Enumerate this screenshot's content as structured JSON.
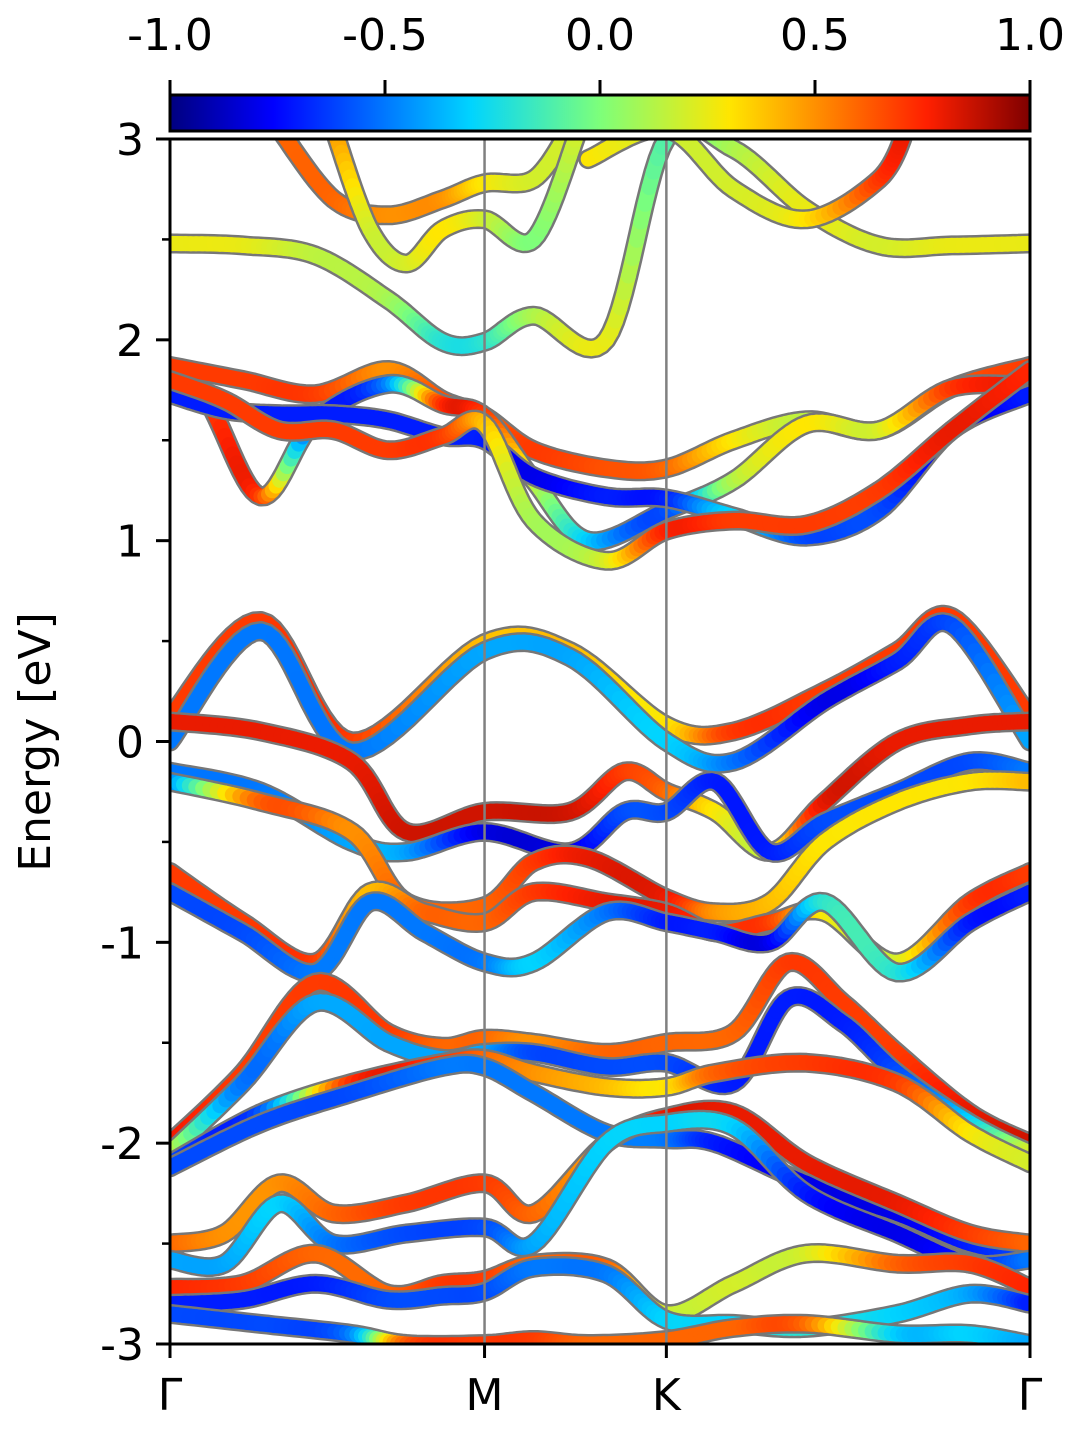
{
  "chart_data": {
    "type": "line",
    "title": "",
    "xlabel": "",
    "ylabel": "Energy [eV]",
    "ylim": [
      -3,
      3
    ],
    "yticks": [
      "-3",
      "-2",
      "-1",
      "0",
      "1",
      "2",
      "3"
    ],
    "xlim": [
      0,
      4.73
    ],
    "kpoints": [
      {
        "label": "Γ",
        "x": 0
      },
      {
        "label": "M",
        "x": 1.73
      },
      {
        "label": "K",
        "x": 2.73
      },
      {
        "label": "Γ",
        "x": 4.73
      }
    ],
    "colorbar": {
      "colormap": "jet",
      "range": [
        -1.0,
        1.0
      ],
      "ticks": [
        "-1.0",
        "-0.5",
        "0.0",
        "0.5",
        "1.0"
      ],
      "placement": "top"
    },
    "grid": false,
    "series": [
      {
        "x": [
          0,
          0.4,
          0.8,
          1.2,
          1.5,
          1.73,
          2.0,
          2.4,
          2.73,
          3.1,
          3.5,
          3.9,
          4.3,
          4.73
        ],
        "y": [
          2.48,
          2.47,
          2.42,
          2.2,
          1.99,
          1.99,
          2.12,
          2.0,
          3.0,
          2.95,
          2.65,
          2.47,
          2.47,
          2.48
        ],
        "c": [
          0.25,
          0.25,
          0.15,
          0.1,
          -0.2,
          -0.2,
          0.1,
          0.25,
          -0.1,
          0.1,
          0.25,
          0.2,
          0.25,
          0.25
        ]
      },
      {
        "x": [
          0,
          0.4,
          0.8,
          1.2,
          1.5,
          1.73,
          2.0,
          2.4,
          2.73,
          3.1,
          3.5,
          3.9,
          4.3,
          4.73
        ],
        "y": [
          1.87,
          1.8,
          1.73,
          1.85,
          1.7,
          1.62,
          1.45,
          1.36,
          1.36,
          1.5,
          1.6,
          1.55,
          1.76,
          1.87
        ],
        "c": [
          0.7,
          0.7,
          0.7,
          0.5,
          0.65,
          0.6,
          0.7,
          0.65,
          0.6,
          0.3,
          0.15,
          0.2,
          0.6,
          0.7
        ]
      },
      {
        "x": [
          0,
          0.2,
          0.5,
          0.8,
          1.2,
          1.5,
          1.73,
          2.0,
          2.3,
          2.73,
          3.1,
          3.5,
          3.9,
          4.3,
          4.73
        ],
        "y": [
          1.77,
          1.7,
          1.22,
          1.6,
          1.78,
          1.68,
          1.62,
          1.3,
          1.0,
          1.15,
          1.3,
          1.58,
          1.55,
          1.76,
          1.77
        ],
        "c": [
          0.8,
          0.7,
          0.7,
          -0.6,
          -0.5,
          0.7,
          0.7,
          0.2,
          -0.3,
          -0.6,
          0.1,
          0.3,
          0.2,
          0.7,
          0.8
        ]
      },
      {
        "x": [
          0,
          0.3,
          0.6,
          0.9,
          1.2,
          1.5,
          1.73,
          2.0,
          2.4,
          2.73,
          3.1,
          3.5,
          3.9,
          4.3,
          4.73
        ],
        "y": [
          1.73,
          1.65,
          1.63,
          1.63,
          1.6,
          1.52,
          1.5,
          1.32,
          1.22,
          1.21,
          1.12,
          1.02,
          1.15,
          1.55,
          1.73
        ],
        "c": [
          -0.7,
          -0.7,
          -0.7,
          -0.7,
          -0.7,
          -0.7,
          -0.7,
          -0.8,
          -0.7,
          -0.7,
          -0.3,
          -0.6,
          -0.6,
          -0.8,
          -0.7
        ]
      },
      {
        "x": [
          0,
          0.3,
          0.6,
          0.9,
          1.2,
          1.5,
          1.73,
          2.0,
          2.4,
          2.73,
          3.1,
          3.5,
          3.9,
          4.3,
          4.73
        ],
        "y": [
          1.8,
          1.7,
          1.55,
          1.55,
          1.45,
          1.52,
          1.58,
          1.1,
          0.9,
          1.05,
          1.1,
          1.08,
          1.25,
          1.55,
          1.85
        ],
        "c": [
          0.7,
          0.7,
          0.7,
          0.7,
          0.7,
          0.7,
          0.4,
          0.1,
          0.2,
          0.75,
          0.7,
          0.7,
          0.7,
          0.8,
          0.75
        ]
      },
      {
        "x": [
          0,
          0.5,
          1.0,
          1.73,
          2.2,
          2.73,
          3.1,
          3.6,
          4.0,
          4.3,
          4.73
        ],
        "y": [
          0.12,
          0.6,
          0.0,
          0.49,
          0.45,
          0.08,
          0.05,
          0.25,
          0.45,
          0.62,
          0.12
        ],
        "c": [
          0.7,
          0.7,
          0.7,
          0.4,
          0.4,
          0.3,
          0.7,
          0.7,
          0.7,
          0.7,
          0.7
        ]
      },
      {
        "x": [
          0,
          0.5,
          1.0,
          1.73,
          2.2,
          2.73,
          3.1,
          3.6,
          4.0,
          4.3,
          4.73
        ],
        "y": [
          0.0,
          0.55,
          -0.05,
          0.45,
          0.42,
          0.0,
          -0.1,
          0.2,
          0.4,
          0.58,
          0.0
        ],
        "c": [
          -0.5,
          -0.5,
          -0.5,
          -0.4,
          -0.4,
          -0.3,
          -0.5,
          -0.8,
          -0.7,
          -0.6,
          -0.4
        ]
      },
      {
        "x": [
          0,
          0.5,
          1.0,
          1.3,
          1.73,
          2.2,
          2.5,
          2.73,
          3.0,
          3.3,
          3.6,
          4.0,
          4.4,
          4.73
        ],
        "y": [
          0.1,
          0.05,
          -0.1,
          -0.45,
          -0.35,
          -0.35,
          -0.15,
          -0.25,
          -0.35,
          -0.55,
          -0.3,
          0.0,
          0.08,
          0.1
        ],
        "c": [
          0.8,
          0.8,
          0.8,
          0.85,
          0.85,
          0.85,
          0.7,
          0.6,
          0.3,
          0.2,
          0.8,
          0.8,
          0.8,
          0.8
        ]
      },
      {
        "x": [
          0,
          0.5,
          1.0,
          1.3,
          1.73,
          2.2,
          2.5,
          2.73,
          3.0,
          3.3,
          3.6,
          4.0,
          4.4,
          4.73
        ],
        "y": [
          -0.15,
          -0.25,
          -0.5,
          -0.55,
          -0.45,
          -0.55,
          -0.35,
          -0.35,
          -0.2,
          -0.55,
          -0.4,
          -0.25,
          -0.1,
          -0.15
        ],
        "c": [
          -0.5,
          -0.5,
          -0.4,
          -0.4,
          -0.8,
          -0.8,
          -0.6,
          -0.6,
          -0.7,
          -0.7,
          -0.6,
          -0.6,
          -0.6,
          -0.5
        ]
      },
      {
        "x": [
          0,
          0.5,
          1.0,
          1.3,
          1.73,
          2.0,
          2.3,
          2.73,
          3.0,
          3.3,
          3.6,
          4.0,
          4.4,
          4.73
        ],
        "y": [
          -0.2,
          -0.3,
          -0.45,
          -0.8,
          -0.82,
          -0.6,
          -0.58,
          -0.78,
          -0.85,
          -0.8,
          -0.5,
          -0.3,
          -0.2,
          -0.2
        ],
        "c": [
          -0.5,
          0.6,
          0.5,
          0.6,
          0.6,
          0.7,
          0.8,
          0.8,
          0.5,
          0.4,
          0.3,
          0.3,
          0.3,
          0.4
        ]
      },
      {
        "x": [
          0,
          0.4,
          0.8,
          1.1,
          1.4,
          1.73,
          2.0,
          2.4,
          2.73,
          3.0,
          3.3,
          3.6,
          4.0,
          4.4,
          4.73
        ],
        "y": [
          -0.65,
          -0.9,
          -1.1,
          -0.75,
          -0.85,
          -0.9,
          -0.75,
          -0.8,
          -0.85,
          -0.95,
          -0.9,
          -0.85,
          -1.1,
          -0.8,
          -0.65
        ],
        "c": [
          0.7,
          0.7,
          0.7,
          0.4,
          0.6,
          0.6,
          0.7,
          0.8,
          0.8,
          0.7,
          0.7,
          0.3,
          0.2,
          0.7,
          0.7
        ]
      },
      {
        "x": [
          0,
          0.4,
          0.8,
          1.1,
          1.4,
          1.73,
          2.0,
          2.4,
          2.73,
          3.0,
          3.3,
          3.6,
          4.0,
          4.4,
          4.73
        ],
        "y": [
          -0.75,
          -0.95,
          -1.15,
          -0.8,
          -0.95,
          -1.1,
          -1.1,
          -0.85,
          -0.9,
          -0.95,
          -1.0,
          -0.8,
          -1.15,
          -0.9,
          -0.75
        ],
        "c": [
          -0.6,
          -0.6,
          -0.5,
          -0.5,
          -0.5,
          -0.5,
          -0.3,
          -0.5,
          -0.7,
          -0.7,
          -0.8,
          -0.2,
          -0.2,
          -0.7,
          -0.7
        ]
      },
      {
        "x": [
          0,
          0.4,
          0.8,
          1.2,
          1.5,
          1.73,
          2.0,
          2.4,
          2.73,
          3.1,
          3.4,
          3.7,
          4.0,
          4.4,
          4.73
        ],
        "y": [
          -2.0,
          -1.65,
          -1.2,
          -1.45,
          -1.52,
          -1.48,
          -1.5,
          -1.55,
          -1.5,
          -1.45,
          -1.1,
          -1.3,
          -1.55,
          -1.85,
          -2.0
        ],
        "c": [
          0.8,
          0.7,
          0.7,
          0.7,
          0.6,
          0.6,
          0.5,
          0.6,
          0.6,
          0.6,
          0.7,
          0.7,
          0.7,
          0.8,
          0.85
        ]
      },
      {
        "x": [
          0,
          0.4,
          0.8,
          1.2,
          1.5,
          1.73,
          2.0,
          2.4,
          2.73,
          3.1,
          3.4,
          3.7,
          4.0,
          4.4,
          4.73
        ],
        "y": [
          -2.05,
          -1.7,
          -1.3,
          -1.5,
          -1.58,
          -1.55,
          -1.55,
          -1.62,
          -1.6,
          -1.7,
          -1.28,
          -1.4,
          -1.65,
          -1.9,
          -2.05
        ],
        "c": [
          0.2,
          -0.5,
          -0.4,
          -0.4,
          -0.4,
          -0.4,
          -0.6,
          -0.6,
          -0.6,
          -0.7,
          -0.7,
          -0.7,
          -0.6,
          -0.3,
          0.2
        ]
      },
      {
        "x": [
          0,
          0.5,
          1.0,
          1.5,
          1.73,
          2.0,
          2.4,
          2.73,
          3.0,
          3.5,
          4.0,
          4.4,
          4.73
        ],
        "y": [
          -2.1,
          -1.85,
          -1.7,
          -1.6,
          -1.58,
          -1.65,
          -1.72,
          -1.72,
          -1.65,
          -1.6,
          -1.7,
          -1.95,
          -2.1
        ],
        "c": [
          -0.6,
          -0.6,
          0.7,
          0.7,
          0.6,
          0.5,
          0.4,
          0.3,
          0.6,
          0.7,
          0.7,
          0.3,
          0.2
        ]
      },
      {
        "x": [
          0,
          0.5,
          1.0,
          1.5,
          1.73,
          2.0,
          2.4,
          2.73,
          3.0,
          3.5,
          4.0,
          4.4,
          4.73
        ],
        "y": [
          -2.12,
          -1.9,
          -1.75,
          -1.62,
          -1.62,
          -1.75,
          -1.95,
          -1.98,
          -2.0,
          -2.2,
          -2.35,
          -2.5,
          -2.55
        ],
        "c": [
          -0.6,
          -0.6,
          -0.6,
          -0.5,
          -0.5,
          -0.5,
          -0.5,
          -0.5,
          -0.7,
          -0.8,
          -0.8,
          -0.7,
          -0.6
        ]
      },
      {
        "x": [
          0,
          0.3,
          0.6,
          0.9,
          1.3,
          1.73,
          2.0,
          2.4,
          2.73,
          3.1,
          3.5,
          4.0,
          4.4,
          4.73
        ],
        "y": [
          -2.5,
          -2.45,
          -2.2,
          -2.35,
          -2.3,
          -2.2,
          -2.35,
          -2.0,
          -1.87,
          -1.85,
          -2.1,
          -2.3,
          -2.45,
          -2.5
        ],
        "c": [
          0.6,
          0.5,
          0.5,
          0.6,
          0.7,
          0.7,
          0.6,
          0.5,
          0.8,
          0.8,
          0.8,
          0.8,
          0.7,
          0.6
        ]
      },
      {
        "x": [
          0,
          0.3,
          0.6,
          0.9,
          1.3,
          1.73,
          2.0,
          2.4,
          2.73,
          3.1,
          3.5,
          4.0,
          4.4,
          4.73
        ],
        "y": [
          -2.58,
          -2.6,
          -2.3,
          -2.5,
          -2.45,
          -2.42,
          -2.5,
          -2.0,
          -1.9,
          -1.92,
          -2.25,
          -2.45,
          -2.6,
          -2.58
        ],
        "c": [
          -0.4,
          -0.4,
          -0.3,
          -0.5,
          -0.6,
          -0.6,
          -0.4,
          -0.3,
          -0.3,
          -0.3,
          -0.7,
          -0.8,
          -0.7,
          -0.5
        ]
      },
      {
        "x": [
          0,
          0.4,
          0.8,
          1.2,
          1.5,
          1.73,
          2.0,
          2.4,
          2.73,
          3.1,
          3.5,
          4.0,
          4.4,
          4.73
        ],
        "y": [
          -2.72,
          -2.7,
          -2.55,
          -2.75,
          -2.7,
          -2.68,
          -2.6,
          -2.62,
          -2.85,
          -2.7,
          -2.55,
          -2.6,
          -2.6,
          -2.72
        ],
        "c": [
          0.75,
          0.7,
          0.6,
          0.6,
          0.7,
          0.7,
          0.6,
          0.6,
          0.2,
          0.2,
          0.2,
          0.6,
          0.7,
          0.75
        ]
      },
      {
        "x": [
          0,
          0.4,
          0.8,
          1.2,
          1.5,
          1.73,
          2.0,
          2.4,
          2.73,
          3.1,
          3.5,
          4.0,
          4.4,
          4.73
        ],
        "y": [
          -2.8,
          -2.78,
          -2.7,
          -2.78,
          -2.76,
          -2.74,
          -2.62,
          -2.65,
          -2.88,
          -2.9,
          -2.92,
          -2.85,
          -2.75,
          -2.8
        ],
        "c": [
          -0.7,
          -0.7,
          -0.7,
          -0.6,
          -0.6,
          -0.6,
          -0.5,
          -0.5,
          -0.3,
          -0.3,
          -0.2,
          -0.3,
          -0.4,
          -0.7
        ]
      },
      {
        "x": [
          0,
          0.5,
          1.0,
          1.3,
          1.73,
          2.0,
          2.3,
          2.73,
          3.1,
          3.5,
          4.0,
          4.4,
          4.73
        ],
        "y": [
          -2.85,
          -2.9,
          -2.95,
          -3.0,
          -3.0,
          -2.98,
          -3.0,
          -2.98,
          -2.92,
          -2.9,
          -2.95,
          -2.95,
          -3.0
        ],
        "c": [
          -0.6,
          -0.6,
          -0.5,
          0.6,
          0.7,
          0.7,
          0.6,
          0.6,
          0.6,
          0.6,
          -0.3,
          -0.3,
          -0.4
        ]
      },
      {
        "x": [
          0.6,
          0.9,
          1.2,
          1.5,
          1.73,
          2.0,
          2.2
        ],
        "y": [
          3.05,
          2.7,
          2.62,
          2.7,
          2.78,
          2.8,
          3.05
        ],
        "c": [
          0.6,
          0.6,
          0.5,
          0.5,
          0.3,
          0.2,
          0.2
        ]
      },
      {
        "x": [
          0.9,
          1.1,
          1.3,
          1.5,
          1.73,
          2.0,
          2.25
        ],
        "y": [
          3.05,
          2.55,
          2.38,
          2.55,
          2.6,
          2.5,
          3.05
        ],
        "c": [
          0.5,
          0.2,
          0.2,
          0.3,
          0.2,
          0.0,
          0.2
        ]
      },
      {
        "x": [
          2.3,
          2.73,
          3.1,
          3.5,
          3.9,
          4.05
        ],
        "y": [
          2.9,
          3.05,
          2.75,
          2.6,
          2.8,
          3.05
        ],
        "c": [
          0.3,
          0.2,
          0.2,
          0.3,
          0.7,
          0.8
        ]
      }
    ]
  }
}
